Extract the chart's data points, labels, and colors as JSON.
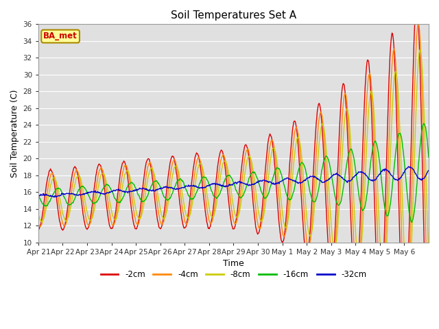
{
  "title": "Soil Temperatures Set A",
  "xlabel": "Time",
  "ylabel": "Soil Temperature (C)",
  "ylim": [
    10,
    36
  ],
  "yticks": [
    10,
    12,
    14,
    16,
    18,
    20,
    22,
    24,
    26,
    28,
    30,
    32,
    34,
    36
  ],
  "colors": {
    "-2cm": "#dd0000",
    "-4cm": "#ff8800",
    "-8cm": "#cccc00",
    "-16cm": "#00bb00",
    "-32cm": "#0000cc"
  },
  "legend_labels": [
    "-2cm",
    "-4cm",
    "-8cm",
    "-16cm",
    "-32cm"
  ],
  "annotation_text": "BA_met",
  "annotation_bg": "#ffff99",
  "annotation_border": "#aa8800",
  "bg_color": "#e0e0e0",
  "xtick_labels": [
    "Apr 21",
    "Apr 22",
    "Apr 23",
    "Apr 24",
    "Apr 25",
    "Apr 26",
    "Apr 27",
    "Apr 28",
    "Apr 29",
    "Apr 30",
    "May 1",
    "May 2",
    "May 3",
    "May 4",
    "May 5",
    "May 6"
  ],
  "n_days": 16,
  "points_per_day": 48
}
